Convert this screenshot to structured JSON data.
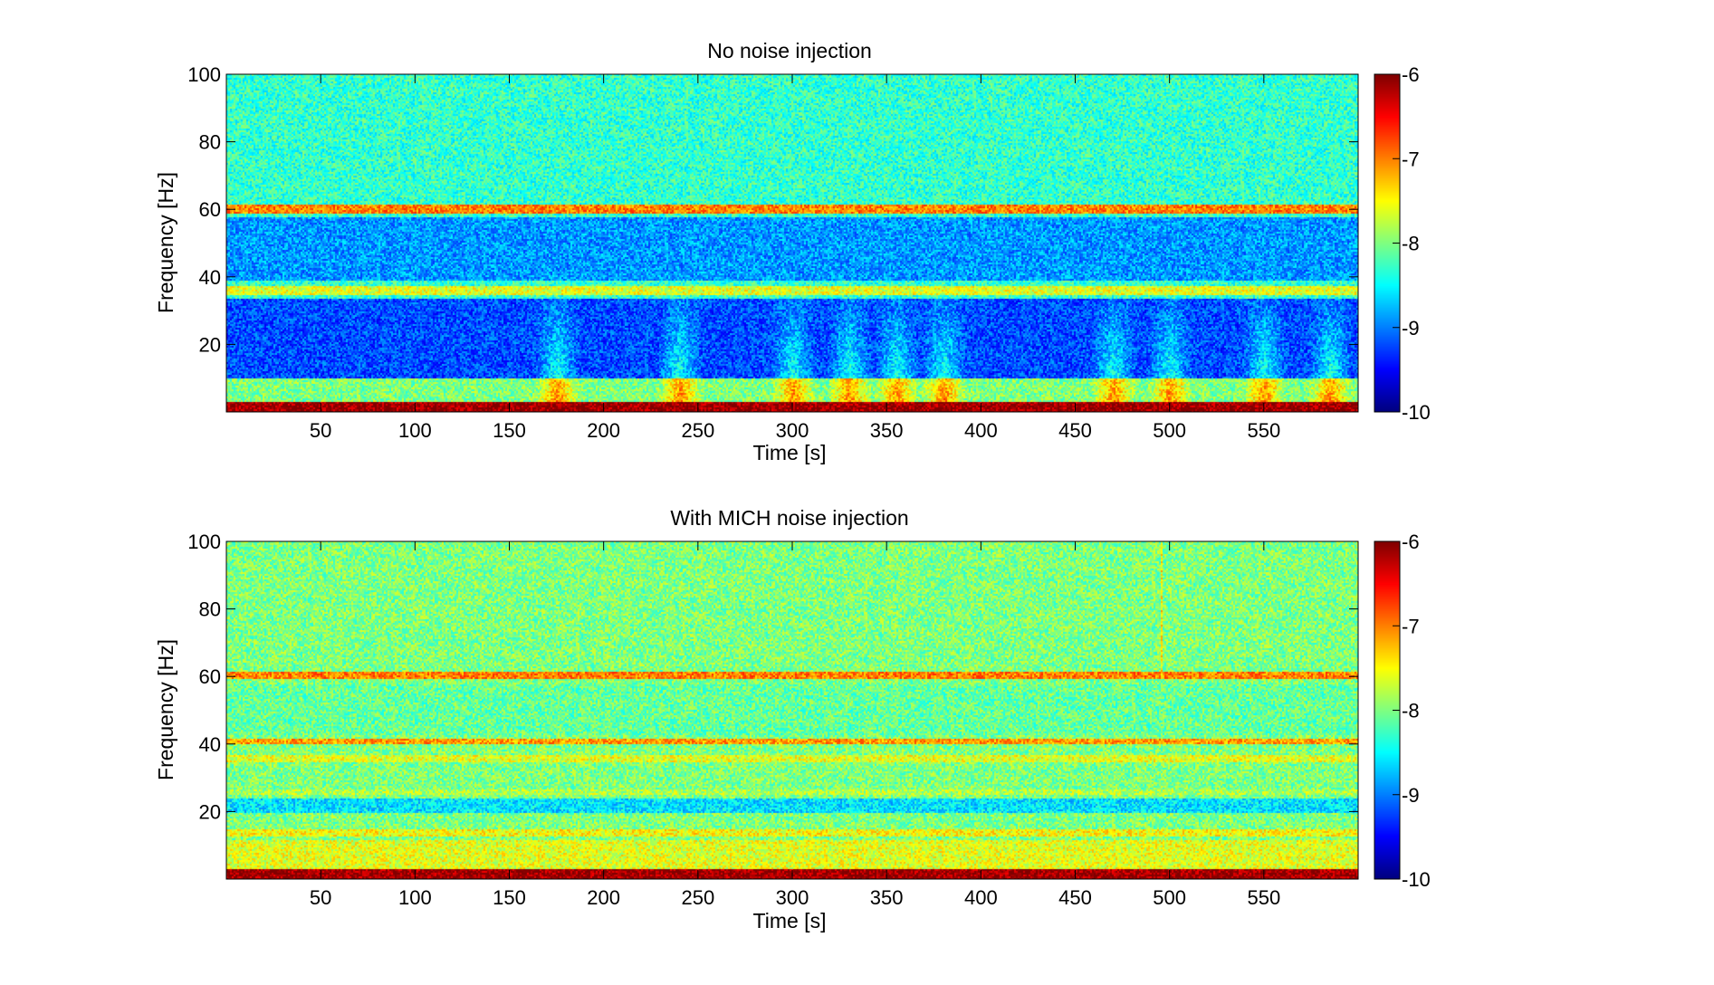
{
  "chart_data": [
    {
      "type": "heatmap",
      "title": "No noise injection",
      "xlabel": "Time [s]",
      "ylabel": "Frequency [Hz]",
      "xlim": [
        0,
        600
      ],
      "ylim": [
        0,
        100
      ],
      "xticks": [
        50,
        100,
        150,
        200,
        250,
        300,
        350,
        400,
        450,
        500,
        550
      ],
      "xtick_labels": [
        "50",
        "100",
        "150",
        "200",
        "250",
        "300",
        "350",
        "400",
        "450",
        "500",
        "550"
      ],
      "yticks": [
        20,
        40,
        60,
        80,
        100
      ],
      "ytick_labels": [
        "20",
        "40",
        "60",
        "80",
        "100"
      ],
      "colorbar": {
        "colormap": "jet",
        "clim": [
          -10,
          -6
        ],
        "ticks": [
          -6,
          -7,
          -8,
          -9,
          -10
        ],
        "tick_labels": [
          "-6",
          "-7",
          "-8",
          "-9",
          "-10"
        ]
      },
      "background_level": -8.3,
      "bands": [
        {
          "freq_hz": [
            59,
            61.5
          ],
          "level": -7.0
        },
        {
          "freq_hz": [
            35,
            37.5
          ],
          "level": -7.6
        },
        {
          "freq_hz": [
            0,
            3
          ],
          "level": -6.1
        }
      ],
      "regions": [
        {
          "freq_hz": [
            62,
            100
          ],
          "level": -8.3
        },
        {
          "freq_hz": [
            39,
            58
          ],
          "level": -8.9
        },
        {
          "freq_hz": [
            10,
            34
          ],
          "level": -9.2
        },
        {
          "freq_hz": [
            3,
            10
          ],
          "level": -8.0
        }
      ],
      "broadband_bursts_s": [
        175,
        240,
        300,
        330,
        355,
        380,
        470,
        500,
        550,
        585
      ]
    },
    {
      "type": "heatmap",
      "title": "With MICH noise injection",
      "xlabel": "Time [s]",
      "ylabel": "Frequency [Hz]",
      "xlim": [
        0,
        600
      ],
      "ylim": [
        0,
        100
      ],
      "xticks": [
        50,
        100,
        150,
        200,
        250,
        300,
        350,
        400,
        450,
        500,
        550
      ],
      "xtick_labels": [
        "50",
        "100",
        "150",
        "200",
        "250",
        "300",
        "350",
        "400",
        "450",
        "500",
        "550"
      ],
      "yticks": [
        20,
        40,
        60,
        80,
        100
      ],
      "ytick_labels": [
        "20",
        "40",
        "60",
        "80",
        "100"
      ],
      "colorbar": {
        "colormap": "jet",
        "clim": [
          -10,
          -6
        ],
        "ticks": [
          -6,
          -7,
          -8,
          -9,
          -10
        ],
        "tick_labels": [
          "-6",
          "-7",
          "-8",
          "-9",
          "-10"
        ]
      },
      "background_level": -8.0,
      "bands": [
        {
          "freq_hz": [
            59.5,
            61.5
          ],
          "level": -7.0
        },
        {
          "freq_hz": [
            40,
            42
          ],
          "level": -7.1
        },
        {
          "freq_hz": [
            35,
            37
          ],
          "level": -7.6
        },
        {
          "freq_hz": [
            25,
            27
          ],
          "level": -7.8
        },
        {
          "freq_hz": [
            13,
            15
          ],
          "level": -7.5
        },
        {
          "freq_hz": [
            0,
            3
          ],
          "level": -6.1
        }
      ],
      "regions": [
        {
          "freq_hz": [
            62,
            100
          ],
          "level": -8.0
        },
        {
          "freq_hz": [
            43,
            58
          ],
          "level": -8.1
        },
        {
          "freq_hz": [
            20,
            24
          ],
          "level": -8.6
        },
        {
          "freq_hz": [
            3,
            12
          ],
          "level": -7.6
        }
      ],
      "transient_line_s": 495
    }
  ]
}
